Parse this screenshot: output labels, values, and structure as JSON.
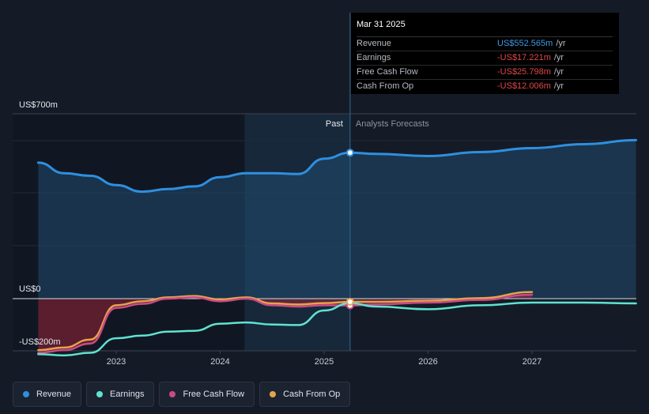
{
  "chart_data": {
    "type": "area",
    "y_label_top": "US$700m",
    "y_label_zero": "US$0",
    "y_label_bottom": "-US$200m",
    "ylim": [
      -200,
      700
    ],
    "xlim": [
      2022.25,
      2028.0
    ],
    "x_ticks": [
      "2023",
      "2024",
      "2025",
      "2026",
      "2027"
    ],
    "divider_x": 2025.25,
    "past_label": "Past",
    "forecast_label": "Analysts Forecasts",
    "series": [
      {
        "name": "Revenue",
        "color": "#2f8fe0",
        "points": [
          [
            2022.25,
            515
          ],
          [
            2022.5,
            475
          ],
          [
            2022.75,
            465
          ],
          [
            2023.0,
            430
          ],
          [
            2023.25,
            405
          ],
          [
            2023.5,
            415
          ],
          [
            2023.75,
            425
          ],
          [
            2024.0,
            460
          ],
          [
            2024.25,
            475
          ],
          [
            2024.5,
            475
          ],
          [
            2024.75,
            472
          ],
          [
            2025.0,
            530
          ],
          [
            2025.25,
            552.565
          ],
          [
            2025.5,
            548
          ],
          [
            2026.0,
            540
          ],
          [
            2026.5,
            555
          ],
          [
            2027.0,
            570
          ],
          [
            2027.5,
            585
          ],
          [
            2028.0,
            600
          ]
        ]
      },
      {
        "name": "Earnings",
        "color": "#5fe3d2",
        "points": [
          [
            2022.25,
            -210
          ],
          [
            2022.5,
            -215
          ],
          [
            2022.75,
            -205
          ],
          [
            2023.0,
            -150
          ],
          [
            2023.25,
            -140
          ],
          [
            2023.5,
            -125
          ],
          [
            2023.75,
            -122
          ],
          [
            2024.0,
            -95
          ],
          [
            2024.25,
            -90
          ],
          [
            2024.5,
            -98
          ],
          [
            2024.75,
            -100
          ],
          [
            2025.0,
            -45
          ],
          [
            2025.25,
            -17.221
          ],
          [
            2025.5,
            -30
          ],
          [
            2026.0,
            -40
          ],
          [
            2026.5,
            -25
          ],
          [
            2027.0,
            -15
          ],
          [
            2027.5,
            -15
          ],
          [
            2028.0,
            -18
          ]
        ]
      },
      {
        "name": "Free Cash Flow",
        "color": "#c94b86",
        "points": [
          [
            2022.25,
            -205
          ],
          [
            2022.5,
            -195
          ],
          [
            2022.75,
            -170
          ],
          [
            2023.0,
            -35
          ],
          [
            2023.25,
            -20
          ],
          [
            2023.5,
            0
          ],
          [
            2023.75,
            5
          ],
          [
            2024.0,
            -10
          ],
          [
            2024.25,
            0
          ],
          [
            2024.5,
            -25
          ],
          [
            2024.75,
            -30
          ],
          [
            2025.0,
            -25
          ],
          [
            2025.25,
            -25.798
          ],
          [
            2025.5,
            -22
          ],
          [
            2026.0,
            -15
          ],
          [
            2026.5,
            -5
          ],
          [
            2027.0,
            15
          ]
        ]
      },
      {
        "name": "Cash From Op",
        "color": "#e8a24c",
        "points": [
          [
            2022.25,
            -195
          ],
          [
            2022.5,
            -185
          ],
          [
            2022.75,
            -155
          ],
          [
            2023.0,
            -25
          ],
          [
            2023.25,
            -10
          ],
          [
            2023.5,
            5
          ],
          [
            2023.75,
            10
          ],
          [
            2024.0,
            -3
          ],
          [
            2024.25,
            5
          ],
          [
            2024.5,
            -18
          ],
          [
            2024.75,
            -22
          ],
          [
            2025.0,
            -17
          ],
          [
            2025.25,
            -12.006
          ],
          [
            2025.5,
            -12
          ],
          [
            2026.0,
            -8
          ],
          [
            2026.5,
            2
          ],
          [
            2027.0,
            25
          ]
        ]
      }
    ]
  },
  "tooltip": {
    "date": "Mar 31 2025",
    "rows": [
      {
        "label": "Revenue",
        "value": "US$552.565m",
        "unit": "/yr"
      },
      {
        "label": "Earnings",
        "value": "-US$17.221m",
        "unit": "/yr"
      },
      {
        "label": "Free Cash Flow",
        "value": "-US$25.798m",
        "unit": "/yr"
      },
      {
        "label": "Cash From Op",
        "value": "-US$12.006m",
        "unit": "/yr"
      }
    ]
  },
  "legend": [
    {
      "label": "Revenue",
      "color": "#2f8fe0"
    },
    {
      "label": "Earnings",
      "color": "#5fe3d2"
    },
    {
      "label": "Free Cash Flow",
      "color": "#c94b86"
    },
    {
      "label": "Cash From Op",
      "color": "#e8a24c"
    }
  ]
}
